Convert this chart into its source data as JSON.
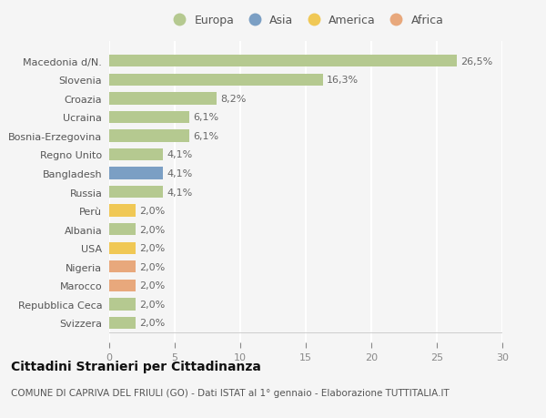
{
  "categories": [
    "Svizzera",
    "Repubblica Ceca",
    "Marocco",
    "Nigeria",
    "USA",
    "Albania",
    "Perù",
    "Russia",
    "Bangladesh",
    "Regno Unito",
    "Bosnia-Erzegovina",
    "Ucraina",
    "Croazia",
    "Slovenia",
    "Macedonia d/N."
  ],
  "values": [
    2.0,
    2.0,
    2.0,
    2.0,
    2.0,
    2.0,
    2.0,
    4.1,
    4.1,
    4.1,
    6.1,
    6.1,
    8.2,
    16.3,
    26.5
  ],
  "bar_colors": [
    "#b5c990",
    "#b5c990",
    "#e8a87c",
    "#e8a87c",
    "#f0c855",
    "#b5c990",
    "#f0c855",
    "#b5c990",
    "#7b9fc4",
    "#b5c990",
    "#b5c990",
    "#b5c990",
    "#b5c990",
    "#b5c990",
    "#b5c990"
  ],
  "legend_labels": [
    "Europa",
    "Asia",
    "America",
    "Africa"
  ],
  "legend_colors": [
    "#b5c990",
    "#7b9fc4",
    "#f0c855",
    "#e8a87c"
  ],
  "title": "Cittadini Stranieri per Cittadinanza",
  "subtitle": "COMUNE DI CAPRIVA DEL FRIULI (GO) - Dati ISTAT al 1° gennaio - Elaborazione TUTTITALIA.IT",
  "xlim": [
    0,
    30
  ],
  "xticks": [
    0,
    5,
    10,
    15,
    20,
    25,
    30
  ],
  "background_color": "#f5f5f5",
  "plot_bg_color": "#f5f5f5",
  "grid_color": "#ffffff",
  "bar_height": 0.65,
  "title_fontsize": 10,
  "subtitle_fontsize": 7.5,
  "label_fontsize": 8,
  "tick_fontsize": 8,
  "value_fontsize": 8,
  "legend_fontsize": 9
}
